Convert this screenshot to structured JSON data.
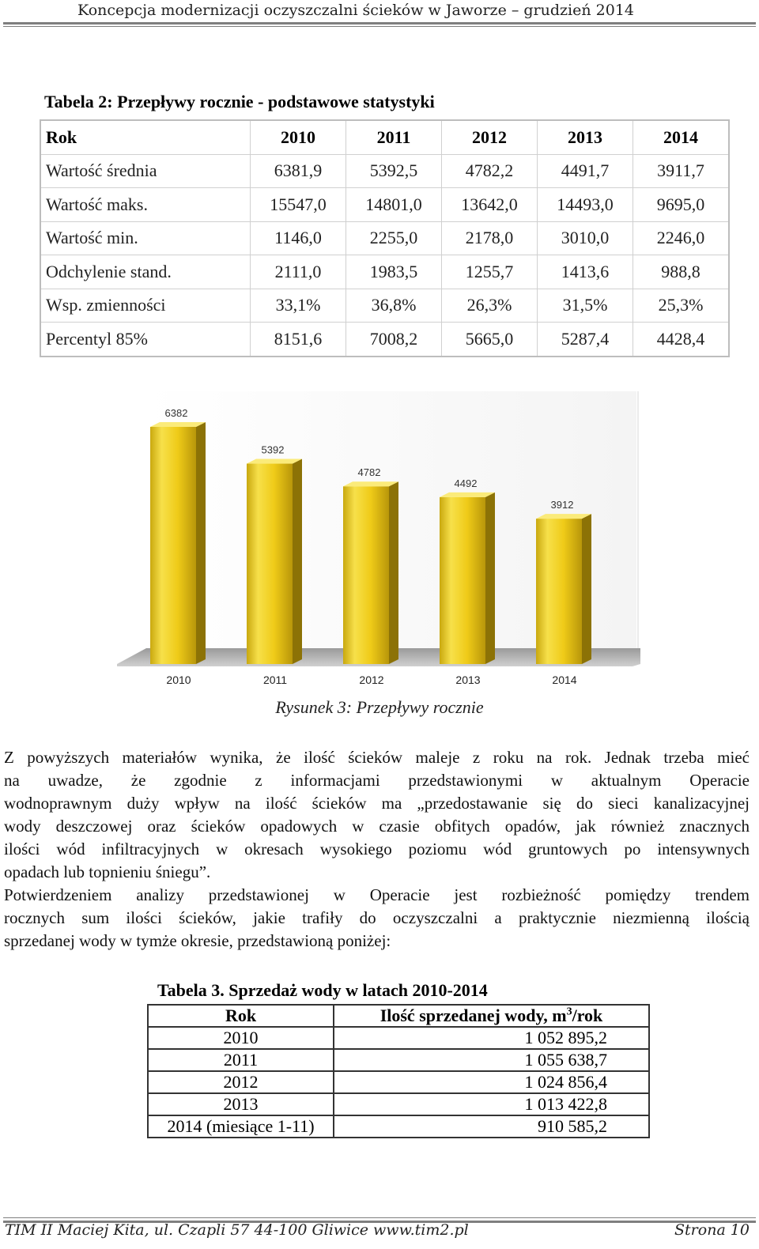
{
  "header": {
    "title": "Koncepcja modernizacji oczyszczalni ścieków w Jaworze – grudzień 2014"
  },
  "table2": {
    "caption": "Tabela 2: Przepływy rocznie - podstawowe statystyki",
    "header": [
      "Rok",
      "2010",
      "2011",
      "2012",
      "2013",
      "2014"
    ],
    "rows": [
      [
        "Wartość średnia",
        "6381,9",
        "5392,5",
        "4782,2",
        "4491,7",
        "3911,7"
      ],
      [
        "Wartość maks.",
        "15547,0",
        "14801,0",
        "13642,0",
        "14493,0",
        "9695,0"
      ],
      [
        "Wartość min.",
        "1146,0",
        "2255,0",
        "2178,0",
        "3010,0",
        "2246,0"
      ],
      [
        "Odchylenie stand.",
        "2111,0",
        "1983,5",
        "1255,7",
        "1413,6",
        "988,8"
      ],
      [
        "Wsp. zmienności",
        "33,1%",
        "36,8%",
        "26,3%",
        "31,5%",
        "25,3%"
      ],
      [
        "Percentyl 85%",
        "8151,6",
        "7008,2",
        "5665,0",
        "5287,4",
        "4428,4"
      ]
    ]
  },
  "chart_data": {
    "type": "bar",
    "categories": [
      "2010",
      "2011",
      "2012",
      "2013",
      "2014"
    ],
    "values": [
      6382,
      5392,
      4782,
      4492,
      3912
    ],
    "data_labels": [
      "6382",
      "5392",
      "4782",
      "4492",
      "3912"
    ],
    "title": "",
    "xlabel": "",
    "ylabel": "",
    "ylim": [
      0,
      6382
    ],
    "style": "3d",
    "bar_color": "#F2D21F",
    "grid": false,
    "legend": "none"
  },
  "figure_caption": "Rysunek 3: Przepływy rocznie",
  "paragraph1": [
    "Z powyższych materiałów wynika, że ilość ścieków maleje z roku na rok. Jednak trzeba mieć",
    "na uwadze, że zgodnie z informacjami przedstawionymi w aktualnym Operacie",
    "wodnoprawnym duży wpływ na ilość ścieków ma „przedostawanie się do sieci kanalizacyjnej",
    "wody deszczowej oraz ścieków opadowych w czasie obfitych opadów, jak również znacznych",
    "ilości wód infiltracyjnych w okresach wysokiego poziomu wód gruntowych po intensywnych",
    "opadach lub topnieniu śniegu”."
  ],
  "paragraph2": [
    "Potwierdzeniem analizy przedstawionej w Operacie jest rozbieżność pomiędzy trendem",
    "rocznych sum ilości ścieków, jakie trafiły do oczyszczalni a praktycznie niezmienną ilością",
    "sprzedanej wody w tymże okresie, przedstawioną poniżej:"
  ],
  "table3": {
    "caption": "Tabela 3. Sprzedaż wody w latach 2010-2014",
    "header_col1": "Rok",
    "header_col2_prefix": "Ilość sprzedanej wody, m",
    "header_col2_sup": "3",
    "header_col2_suffix": "/rok",
    "rows": [
      [
        "2010",
        "1 052 895,2"
      ],
      [
        "2011",
        "1 055 638,7"
      ],
      [
        "2012",
        "1 024 856,4"
      ],
      [
        "2013",
        "1 013 422,8"
      ],
      [
        "2014 (miesiące 1-11)",
        "910 585,2"
      ]
    ]
  },
  "footer": {
    "left": "TIM II Maciej Kita, ul. Czapli 57 44-100 Gliwice www.tim2.pl",
    "right": "Strona 10"
  }
}
